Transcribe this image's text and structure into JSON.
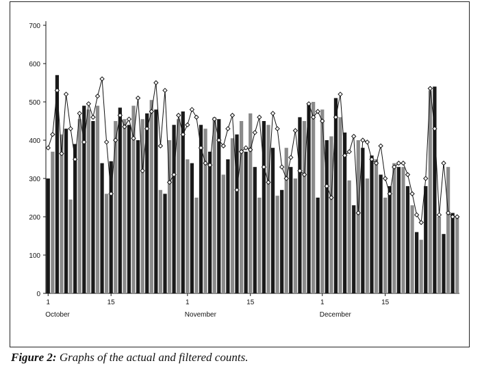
{
  "caption": {
    "label": "Figure 2:",
    "text": "Graphs of the actual and filtered counts."
  },
  "colors": {
    "bar_dark": "#1a1a1a",
    "bar_light": "#8a8a8a",
    "line": "#111111",
    "marker_fill": "#ffffff"
  },
  "chart_data": {
    "type": "bar",
    "title": "",
    "xlabel": "",
    "ylabel": "",
    "ylim": [
      0,
      700
    ],
    "yticks": [
      0,
      100,
      200,
      300,
      400,
      500,
      600,
      700
    ],
    "grid": false,
    "legend": "none",
    "x": [
      1,
      2,
      3,
      4,
      5,
      6,
      7,
      8,
      9,
      10,
      11,
      12,
      13,
      14,
      15,
      16,
      17,
      18,
      19,
      20,
      21,
      22,
      23,
      24,
      25,
      26,
      27,
      28,
      29,
      30,
      31,
      32,
      33,
      34,
      35,
      36,
      37,
      38,
      39,
      40,
      41,
      42,
      43,
      44,
      45,
      46,
      47,
      48,
      49,
      50,
      51,
      52,
      53,
      54,
      55,
      56,
      57,
      58,
      59,
      60,
      61,
      62,
      63,
      64,
      65,
      66,
      67,
      68,
      69,
      70,
      71,
      72,
      73,
      74,
      75,
      76,
      77,
      78,
      79,
      80,
      81,
      82,
      83,
      84,
      85,
      86,
      87,
      88,
      89,
      90,
      91,
      92
    ],
    "xtick_labels": [
      {
        "index": 1,
        "day": "1",
        "month": "October"
      },
      {
        "index": 15,
        "day": "15",
        "month": ""
      },
      {
        "index": 32,
        "day": "1",
        "month": "November"
      },
      {
        "index": 46,
        "day": "15",
        "month": ""
      },
      {
        "index": 62,
        "day": "1",
        "month": "December"
      },
      {
        "index": 76,
        "day": "15",
        "month": ""
      }
    ],
    "series": [
      {
        "kind": "bar",
        "values": [
          300,
          370,
          570,
          415,
          430,
          245,
          390,
          455,
          490,
          480,
          450,
          490,
          340,
          260,
          345,
          450,
          485,
          455,
          440,
          490,
          400,
          455,
          470,
          505,
          480,
          270,
          260,
          400,
          440,
          455,
          475,
          350,
          340,
          250,
          440,
          430,
          370,
          460,
          455,
          310,
          350,
          405,
          415,
          450,
          370,
          470,
          330,
          250,
          450,
          440,
          380,
          255,
          270,
          380,
          330,
          300,
          460,
          450,
          495,
          500,
          250,
          480,
          400,
          410,
          510,
          460,
          420,
          295,
          230,
          400,
          380,
          300,
          360,
          350,
          310,
          250,
          280,
          340,
          330,
          330,
          280,
          230,
          160,
          140,
          280,
          530,
          540,
          200,
          155,
          330,
          210,
          200
        ]
      },
      {
        "kind": "line",
        "values": [
          380,
          415,
          530,
          365,
          520,
          430,
          350,
          470,
          395,
          495,
          460,
          515,
          560,
          395,
          260,
          400,
          465,
          435,
          455,
          405,
          510,
          320,
          430,
          475,
          550,
          385,
          530,
          290,
          310,
          465,
          415,
          440,
          480,
          460,
          380,
          340,
          335,
          455,
          400,
          385,
          430,
          465,
          270,
          370,
          380,
          375,
          420,
          460,
          330,
          290,
          470,
          430,
          330,
          300,
          355,
          425,
          320,
          310,
          495,
          460,
          475,
          450,
          280,
          250,
          460,
          520,
          360,
          370,
          410,
          210,
          400,
          395,
          350,
          340,
          385,
          300,
          260,
          330,
          340,
          340,
          310,
          260,
          205,
          185,
          300,
          535,
          430,
          205,
          340,
          210,
          200,
          200
        ]
      }
    ]
  }
}
